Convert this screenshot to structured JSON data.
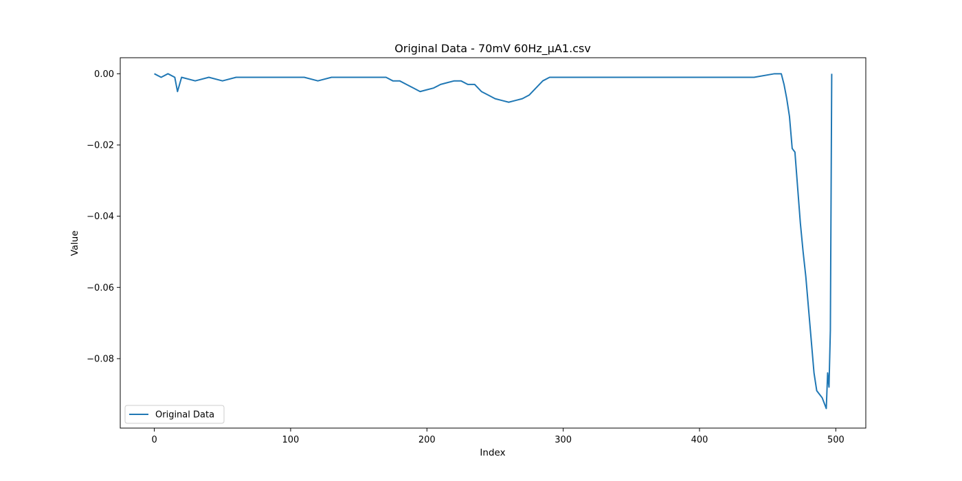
{
  "chart_data": {
    "type": "line",
    "title": "Original Data - 70mV 60Hz_µA1.csv",
    "xlabel": "Index",
    "ylabel": "Value",
    "xlim": [
      -25,
      522
    ],
    "ylim": [
      -0.0995,
      0.0045
    ],
    "xticks": [
      0,
      100,
      200,
      300,
      400,
      500
    ],
    "xtick_labels": [
      "0",
      "100",
      "200",
      "300",
      "400",
      "500"
    ],
    "yticks": [
      0.0,
      -0.02,
      -0.04,
      -0.06,
      -0.08
    ],
    "ytick_labels": [
      "0.00",
      "−0.02",
      "−0.04",
      "−0.06",
      "−0.08"
    ],
    "grid": false,
    "legend_position": "lower-left",
    "colors": {
      "series": "#1f77b4"
    },
    "series": [
      {
        "name": "Original Data",
        "x": [
          0,
          5,
          10,
          15,
          17,
          20,
          30,
          40,
          50,
          60,
          70,
          80,
          90,
          100,
          110,
          120,
          130,
          140,
          150,
          160,
          170,
          175,
          180,
          185,
          190,
          195,
          200,
          205,
          210,
          215,
          220,
          225,
          230,
          235,
          240,
          245,
          250,
          255,
          260,
          265,
          270,
          275,
          280,
          285,
          290,
          300,
          320,
          340,
          360,
          380,
          400,
          420,
          440,
          455,
          460,
          462,
          464,
          466,
          468,
          470,
          472,
          474,
          476,
          478,
          480,
          482,
          484,
          486,
          488,
          490,
          492,
          493,
          494,
          495,
          496,
          497
        ],
        "values": [
          0.0,
          -0.001,
          0.0,
          -0.001,
          -0.005,
          -0.001,
          -0.002,
          -0.001,
          -0.002,
          -0.001,
          -0.001,
          -0.001,
          -0.001,
          -0.001,
          -0.001,
          -0.002,
          -0.001,
          -0.001,
          -0.001,
          -0.001,
          -0.001,
          -0.002,
          -0.002,
          -0.003,
          -0.004,
          -0.005,
          -0.0045,
          -0.004,
          -0.003,
          -0.0025,
          -0.002,
          -0.002,
          -0.003,
          -0.003,
          -0.005,
          -0.006,
          -0.007,
          -0.0075,
          -0.008,
          -0.0075,
          -0.007,
          -0.006,
          -0.004,
          -0.002,
          -0.001,
          -0.001,
          -0.001,
          -0.001,
          -0.001,
          -0.001,
          -0.001,
          -0.001,
          -0.001,
          0.0,
          0.0,
          -0.003,
          -0.007,
          -0.012,
          -0.021,
          -0.022,
          -0.032,
          -0.042,
          -0.05,
          -0.057,
          -0.066,
          -0.075,
          -0.084,
          -0.089,
          -0.09,
          -0.091,
          -0.093,
          -0.094,
          -0.084,
          -0.088,
          -0.072,
          0.0
        ]
      }
    ]
  }
}
